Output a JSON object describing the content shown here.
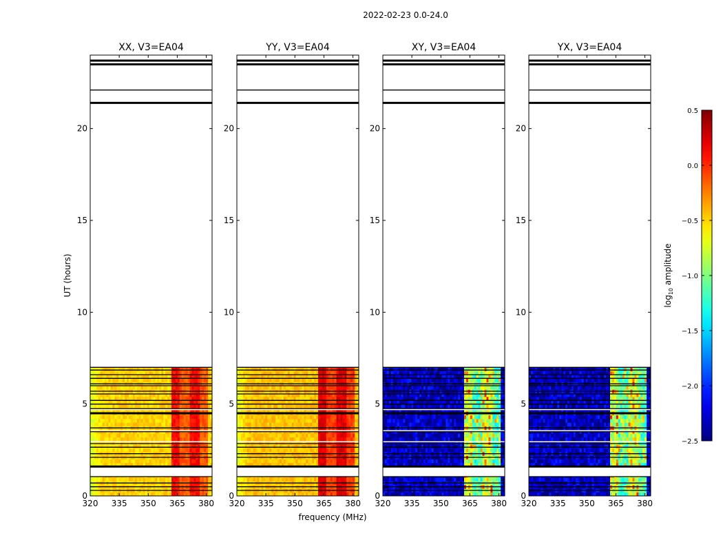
{
  "figure": {
    "suptitle": "2022-02-23 0.0-24.0",
    "ylabel": "UT (hours)",
    "xlabel": "frequency (MHz)"
  },
  "chart_data": {
    "type": "heatmap",
    "x_range_mhz": [
      320,
      383
    ],
    "y_range_hours": [
      0,
      24
    ],
    "xticks": [
      "320",
      "335",
      "350",
      "365",
      "380"
    ],
    "yticks": [
      "0",
      "5",
      "10",
      "15",
      "20"
    ],
    "data_coverage_hours": [
      0,
      7.0
    ],
    "flag_lines_hours": [
      0.3,
      0.5,
      0.7,
      1.05,
      1.6,
      2.1,
      2.3,
      2.65,
      2.85,
      3.5,
      3.7,
      4.5,
      4.75,
      5.0,
      5.2,
      5.55,
      5.7,
      6.0,
      6.1,
      6.4,
      6.6,
      6.85,
      7.0,
      21.4,
      22.1,
      23.5,
      23.7
    ],
    "panels": [
      {
        "title": "XX, V3=EA04",
        "polarization": "XX",
        "base_level": -0.5,
        "rfi_band_level": 0.1
      },
      {
        "title": "YY, V3=EA04",
        "polarization": "YY",
        "base_level": -0.45,
        "rfi_band_level": 0.2
      },
      {
        "title": "XY, V3=EA04",
        "polarization": "XY",
        "base_level": -2.3,
        "rfi_band_level": -0.8
      },
      {
        "title": "YX, V3=EA04",
        "polarization": "YX",
        "base_level": -2.3,
        "rfi_band_level": -0.8
      }
    ],
    "colorbar": {
      "label": "log10 amplitude",
      "label_main": "log",
      "label_sub": "10",
      "label_rest": " amplitude",
      "range": [
        -2.5,
        0.5
      ],
      "ticks": [
        "0.5",
        "0.0",
        "−0.5",
        "−1.0",
        "−1.5",
        "−2.0",
        "−2.5"
      ],
      "colormap": "jet"
    }
  }
}
